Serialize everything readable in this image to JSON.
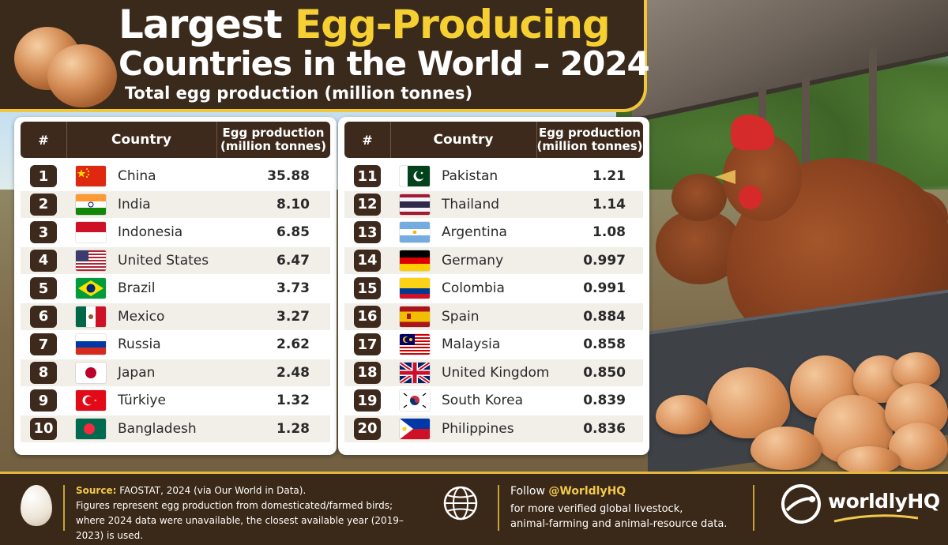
{
  "header": {
    "title_part1": "Largest ",
    "title_highlight": "Egg-Producing",
    "title_line2": "Countries in the World – 2024",
    "subtitle": "Total egg production (million tonnes)"
  },
  "table_headers": {
    "rank": "#",
    "country": "Country",
    "value_line1": "Egg production",
    "value_line2": "(million tonnes)"
  },
  "chart_data": {
    "type": "table",
    "title": "Largest Egg-Producing Countries in the World – 2024",
    "subtitle": "Total egg production (million tonnes)",
    "columns": [
      "#",
      "Country",
      "Egg production (million tonnes)"
    ],
    "rows": [
      {
        "rank": "1",
        "country": "China",
        "value": "35.88",
        "flag": "china-flag-icon"
      },
      {
        "rank": "2",
        "country": "India",
        "value": "8.10",
        "flag": "india-flag-icon"
      },
      {
        "rank": "3",
        "country": "Indonesia",
        "value": "6.85",
        "flag": "indonesia-flag-icon"
      },
      {
        "rank": "4",
        "country": "United States",
        "value": "6.47",
        "flag": "usa-flag-icon"
      },
      {
        "rank": "5",
        "country": "Brazil",
        "value": "3.73",
        "flag": "brazil-flag-icon"
      },
      {
        "rank": "6",
        "country": "Mexico",
        "value": "3.27",
        "flag": "mexico-flag-icon"
      },
      {
        "rank": "7",
        "country": "Russia",
        "value": "2.62",
        "flag": "russia-flag-icon"
      },
      {
        "rank": "8",
        "country": "Japan",
        "value": "2.48",
        "flag": "japan-flag-icon"
      },
      {
        "rank": "9",
        "country": "Türkiye",
        "value": "1.32",
        "flag": "turkiye-flag-icon"
      },
      {
        "rank": "10",
        "country": "Bangladesh",
        "value": "1.28",
        "flag": "bangladesh-flag-icon"
      },
      {
        "rank": "11",
        "country": "Pakistan",
        "value": "1.21",
        "flag": "pakistan-flag-icon"
      },
      {
        "rank": "12",
        "country": "Thailand",
        "value": "1.14",
        "flag": "thailand-flag-icon"
      },
      {
        "rank": "13",
        "country": "Argentina",
        "value": "1.08",
        "flag": "argentina-flag-icon"
      },
      {
        "rank": "14",
        "country": "Germany",
        "value": "0.997",
        "flag": "germany-flag-icon"
      },
      {
        "rank": "15",
        "country": "Colombia",
        "value": "0.991",
        "flag": "colombia-flag-icon"
      },
      {
        "rank": "16",
        "country": "Spain",
        "value": "0.884",
        "flag": "spain-flag-icon"
      },
      {
        "rank": "17",
        "country": "Malaysia",
        "value": "0.858",
        "flag": "malaysia-flag-icon"
      },
      {
        "rank": "18",
        "country": "United Kingdom",
        "value": "0.850",
        "flag": "uk-flag-icon"
      },
      {
        "rank": "19",
        "country": "South Korea",
        "value": "0.839",
        "flag": "south-korea-flag-icon"
      },
      {
        "rank": "20",
        "country": "Philippines",
        "value": "0.836",
        "flag": "philippines-flag-icon"
      }
    ]
  },
  "footer": {
    "source_label": "Source:",
    "source_text": " FAOSTAT, 2024 (via Our World in Data).",
    "note_line1": "Figures represent egg production from domesticated/farmed birds;",
    "note_line2": "where 2024 data were unavailable, the closest available year (2019–2023) is used.",
    "follow_prefix": "Follow ",
    "follow_handle": "@WorldlyHQ",
    "follow_line1": "for more verified global livestock,",
    "follow_line2": "animal-farming and animal-resource data.",
    "brand": "worldlyHQ"
  },
  "colors": {
    "brown": "#3d2a1c",
    "gold": "#f2c94c",
    "alt_row": "#f2efe9"
  }
}
